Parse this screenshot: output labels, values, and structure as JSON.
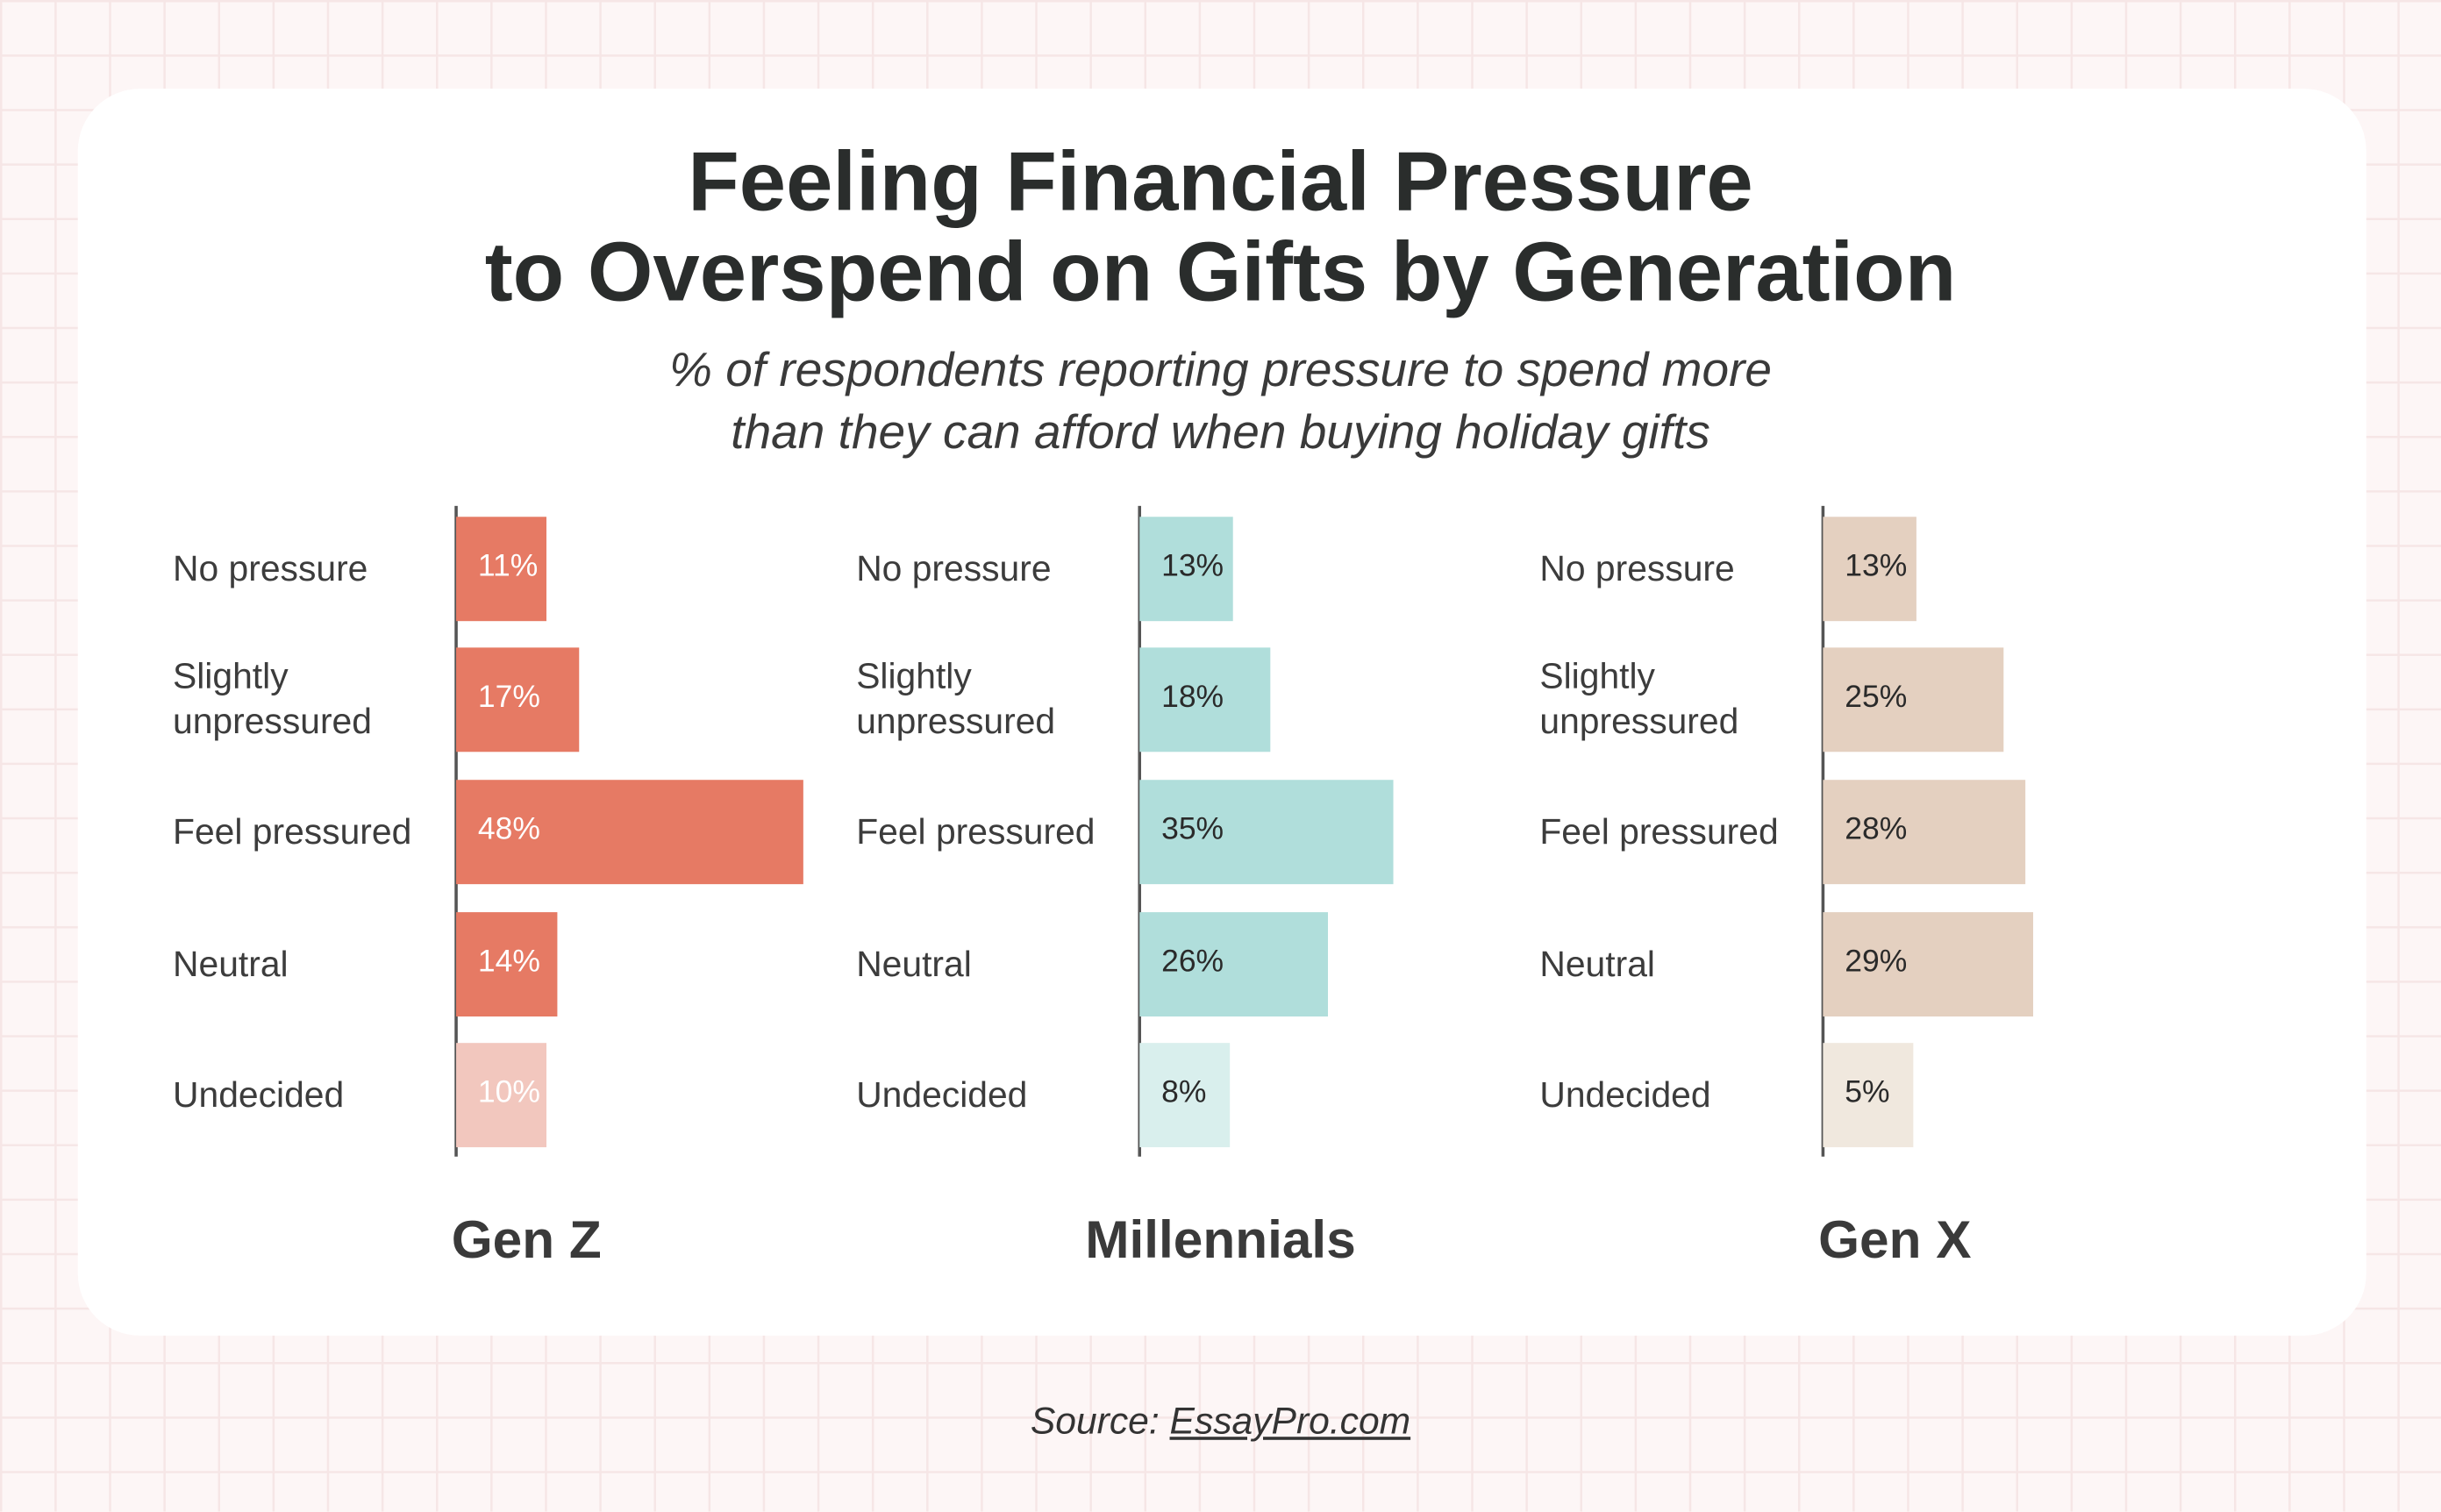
{
  "chart_data": {
    "type": "bar",
    "orientation": "horizontal",
    "title": "Feeling Financial Pressure to Overspend on Gifts by Generation",
    "title_lines": [
      "Feeling Financial Pressure",
      "to Overspend on Gifts by Generation"
    ],
    "subtitle_lines": [
      "% of respondents reporting pressure to spend more",
      "than they can afford when buying holiday gifts"
    ],
    "categories": [
      "No pressure",
      "Slightly unpressured",
      "Feel pressured",
      "Neutral",
      "Undecided"
    ],
    "category_lines": [
      [
        "No pressure"
      ],
      [
        "Slightly",
        "unpressured"
      ],
      [
        "Feel pressured"
      ],
      [
        "Neutral"
      ],
      [
        "Undecided"
      ]
    ],
    "panels": [
      {
        "name": "Gen Z",
        "values": [
          11,
          17,
          48,
          14,
          10
        ],
        "labels": [
          "11%",
          "17%",
          "48%",
          "14%",
          "10%"
        ],
        "color": "#E67A64",
        "undecided_color": "#F2C7BE",
        "label_color": "#ffffff"
      },
      {
        "name": "Millennials",
        "values": [
          13,
          18,
          35,
          26,
          8
        ],
        "labels": [
          "13%",
          "18%",
          "35%",
          "26%",
          "8%"
        ],
        "color": "#B0DEDB",
        "undecided_color": "#D9EFED",
        "label_color": "#2a2a2a"
      },
      {
        "name": "Gen X",
        "values": [
          13,
          25,
          28,
          29,
          5
        ],
        "labels": [
          "13%",
          "25%",
          "28%",
          "29%",
          "5%"
        ],
        "color": "#E4D0C0",
        "undecided_color": "#F0E8DE",
        "label_color": "#2a2a2a"
      }
    ],
    "unit": "%",
    "grid": false
  },
  "source": {
    "prefix": "Source: ",
    "link": "EssayPro.com"
  }
}
